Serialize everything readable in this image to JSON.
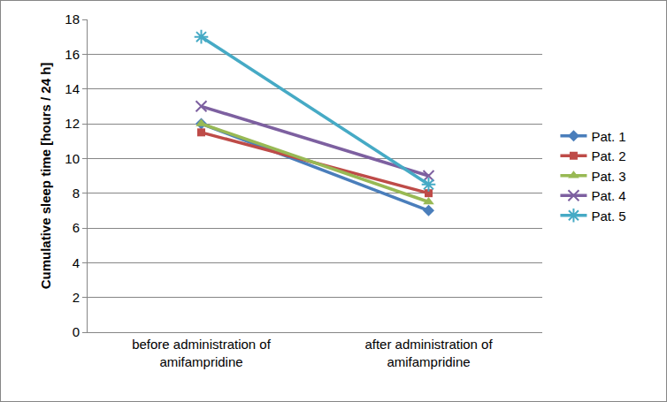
{
  "chart_data": {
    "type": "line",
    "y_label": "Cumulative sleep time [hours / 24 h]",
    "categories": [
      "before administration of amifampridine",
      "after administration of amifampridine"
    ],
    "series": [
      {
        "name": "Pat. 1",
        "color": "#4a7ebb",
        "marker": "diamond",
        "values": [
          12,
          7
        ]
      },
      {
        "name": "Pat. 2",
        "color": "#be4b48",
        "marker": "square",
        "values": [
          11.5,
          8
        ]
      },
      {
        "name": "Pat. 3",
        "color": "#98b954",
        "marker": "triangle",
        "values": [
          12,
          7.5
        ]
      },
      {
        "name": "Pat. 4",
        "color": "#7d60a0",
        "marker": "x",
        "values": [
          13,
          9
        ]
      },
      {
        "name": "Pat. 5",
        "color": "#46aac5",
        "marker": "star",
        "values": [
          17,
          8.5
        ]
      }
    ],
    "ylim": [
      0,
      18
    ],
    "yticks": [
      0,
      2,
      4,
      6,
      8,
      10,
      12,
      14,
      16,
      18
    ],
    "grid": true,
    "legend": "right"
  }
}
